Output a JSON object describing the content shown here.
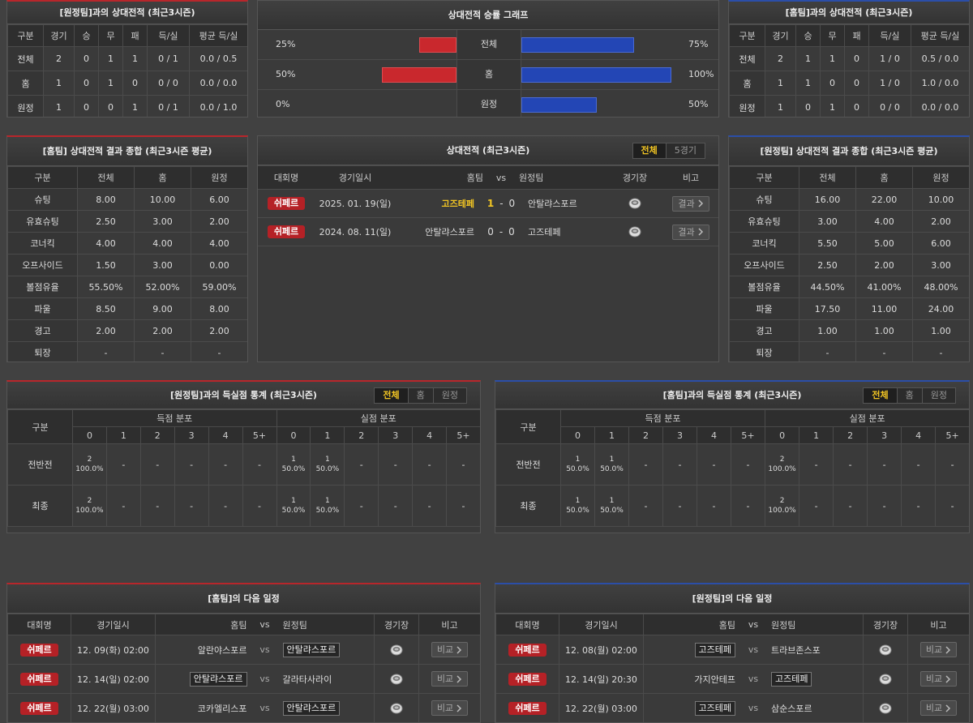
{
  "h2h_vs_away": {
    "title": "[원정팀]과의 상대전적 (최근3시즌)",
    "columns": [
      "구분",
      "경기",
      "승",
      "무",
      "패",
      "득/실",
      "평균 득/실"
    ],
    "rows": [
      [
        "전체",
        "2",
        "0",
        "1",
        "1",
        "0 / 1",
        "0.0 / 0.5"
      ],
      [
        "홈",
        "1",
        "0",
        "1",
        "0",
        "0 / 0",
        "0.0 / 0.0"
      ],
      [
        "원정",
        "1",
        "0",
        "0",
        "1",
        "0 / 1",
        "0.0 / 1.0"
      ]
    ]
  },
  "win_rate_graph": {
    "title": "상대전적 승률 그래프",
    "rows": [
      {
        "label": "전체",
        "left": {
          "value": 25,
          "label": "25%"
        },
        "right": {
          "value": 75,
          "label": "75%"
        }
      },
      {
        "label": "홈",
        "left": {
          "value": 50,
          "label": "50%"
        },
        "right": {
          "value": 100,
          "label": "100%"
        }
      },
      {
        "label": "원정",
        "left": {
          "value": 0,
          "label": "0%"
        },
        "right": {
          "value": 50,
          "label": "50%"
        }
      }
    ]
  },
  "h2h_vs_home": {
    "title": "[홈팀]과의 상대전적 (최근3시즌)",
    "columns": [
      "구분",
      "경기",
      "승",
      "무",
      "패",
      "득/실",
      "평균 득/실"
    ],
    "rows": [
      [
        "전체",
        "2",
        "1",
        "1",
        "0",
        "1 / 0",
        "0.5 / 0.0"
      ],
      [
        "홈",
        "1",
        "1",
        "0",
        "0",
        "1 / 0",
        "1.0 / 0.0"
      ],
      [
        "원정",
        "1",
        "0",
        "1",
        "0",
        "0 / 0",
        "0.0 / 0.0"
      ]
    ]
  },
  "home_summary": {
    "title": "[홈팀] 상대전적 결과 종합 (최근3시즌 평균)",
    "columns": [
      "구분",
      "전체",
      "홈",
      "원정"
    ],
    "rows": [
      [
        "슈팅",
        "8.00",
        "10.00",
        "6.00"
      ],
      [
        "유효슈팅",
        "2.50",
        "3.00",
        "2.00"
      ],
      [
        "코너킥",
        "4.00",
        "4.00",
        "4.00"
      ],
      [
        "오프사이드",
        "1.50",
        "3.00",
        "0.00"
      ],
      [
        "볼점유율",
        "55.50%",
        "52.00%",
        "59.00%"
      ],
      [
        "파울",
        "8.50",
        "9.00",
        "8.00"
      ],
      [
        "경고",
        "2.00",
        "2.00",
        "2.00"
      ],
      [
        "퇴장",
        "-",
        "-",
        "-"
      ]
    ]
  },
  "recent_h2h": {
    "title": "상대전적 (최근3시즌)",
    "tabs": [
      "전체",
      "5경기"
    ],
    "active_tab": 0,
    "columns": [
      "대회명",
      "경기일시",
      "홈팀",
      "vs",
      "원정팀",
      "경기장",
      "비고"
    ],
    "score_separator": "-",
    "matches": [
      {
        "league": "쉬페르",
        "date": "2025. 01. 19(일)",
        "home": "고즈테페",
        "home_score": "1",
        "away_score": "0",
        "away": "안탈랴스포르",
        "note": "결과",
        "winner": "home"
      },
      {
        "league": "쉬페르",
        "date": "2024. 08. 11(일)",
        "home": "안탈랴스포르",
        "home_score": "0",
        "away_score": "0",
        "away": "고즈테페",
        "note": "결과",
        "winner": "draw"
      }
    ]
  },
  "away_summary": {
    "title": "[원정팀] 상대전적 결과 종합 (최근3시즌 평균)",
    "columns": [
      "구분",
      "전체",
      "홈",
      "원정"
    ],
    "rows": [
      [
        "슈팅",
        "16.00",
        "22.00",
        "10.00"
      ],
      [
        "유효슈팅",
        "3.00",
        "4.00",
        "2.00"
      ],
      [
        "코너킥",
        "5.50",
        "5.00",
        "6.00"
      ],
      [
        "오프사이드",
        "2.50",
        "2.00",
        "3.00"
      ],
      [
        "볼점유율",
        "44.50%",
        "41.00%",
        "48.00%"
      ],
      [
        "파울",
        "17.50",
        "11.00",
        "24.00"
      ],
      [
        "경고",
        "1.00",
        "1.00",
        "1.00"
      ],
      [
        "퇴장",
        "-",
        "-",
        "-"
      ]
    ]
  },
  "goal_stats_left": {
    "title": "[원정팀]과의 득실점 통계 (최근3시즌)",
    "tabs": [
      "전체",
      "홈",
      "원정"
    ],
    "active_tab": 0,
    "row_header": "구분",
    "groups": [
      "득점 분포",
      "실점 분포"
    ],
    "buckets": [
      "0",
      "1",
      "2",
      "3",
      "4",
      "5+"
    ],
    "rows": [
      {
        "label": "전반전",
        "cells": [
          [
            "2",
            "100.0%"
          ],
          "-",
          "-",
          "-",
          "-",
          "-",
          [
            "1",
            "50.0%"
          ],
          [
            "1",
            "50.0%"
          ],
          "-",
          "-",
          "-",
          "-"
        ]
      },
      {
        "label": "최종",
        "cells": [
          [
            "2",
            "100.0%"
          ],
          "-",
          "-",
          "-",
          "-",
          "-",
          [
            "1",
            "50.0%"
          ],
          [
            "1",
            "50.0%"
          ],
          "-",
          "-",
          "-",
          "-"
        ]
      }
    ]
  },
  "goal_stats_right": {
    "title": "[홈팀]과의 득실점 통계 (최근3시즌)",
    "tabs": [
      "전체",
      "홈",
      "원정"
    ],
    "active_tab": 0,
    "row_header": "구분",
    "groups": [
      "득점 분포",
      "실점 분포"
    ],
    "buckets": [
      "0",
      "1",
      "2",
      "3",
      "4",
      "5+"
    ],
    "rows": [
      {
        "label": "전반전",
        "cells": [
          [
            "1",
            "50.0%"
          ],
          [
            "1",
            "50.0%"
          ],
          "-",
          "-",
          "-",
          "-",
          [
            "2",
            "100.0%"
          ],
          "-",
          "-",
          "-",
          "-",
          "-"
        ]
      },
      {
        "label": "최종",
        "cells": [
          [
            "1",
            "50.0%"
          ],
          [
            "1",
            "50.0%"
          ],
          "-",
          "-",
          "-",
          "-",
          [
            "2",
            "100.0%"
          ],
          "-",
          "-",
          "-",
          "-",
          "-"
        ]
      }
    ]
  },
  "home_schedule": {
    "title": "[홈팀]의 다음 일정",
    "columns": [
      "대회명",
      "경기일시",
      "홈팀",
      "vs",
      "원정팀",
      "경기장",
      "비고"
    ],
    "separator": "vs",
    "matches": [
      {
        "league": "쉬페르",
        "datetime": "12. 09(화) 02:00",
        "home": "알란야스포르",
        "away": "안탈랴스포르",
        "note": "비교",
        "highlight": "away"
      },
      {
        "league": "쉬페르",
        "datetime": "12. 14(일) 02:00",
        "home": "안탈랴스포르",
        "away": "갈라타사라이",
        "note": "비교",
        "highlight": "home"
      },
      {
        "league": "쉬페르",
        "datetime": "12. 22(월) 03:00",
        "home": "코카엘리스포",
        "away": "안탈랴스포르",
        "note": "비교",
        "highlight": "away"
      }
    ]
  },
  "away_schedule": {
    "title": "[원정팀]의 다음 일정",
    "columns": [
      "대회명",
      "경기일시",
      "홈팀",
      "vs",
      "원정팀",
      "경기장",
      "비고"
    ],
    "separator": "vs",
    "matches": [
      {
        "league": "쉬페르",
        "datetime": "12. 08(월) 02:00",
        "home": "고즈테페",
        "away": "트라브존스포",
        "note": "비교",
        "highlight": "home"
      },
      {
        "league": "쉬페르",
        "datetime": "12. 14(일) 20:30",
        "home": "가지안테프",
        "away": "고즈테페",
        "note": "비교",
        "highlight": "away"
      },
      {
        "league": "쉬페르",
        "datetime": "12. 22(월) 03:00",
        "home": "고즈테페",
        "away": "삼순스포르",
        "note": "비교",
        "highlight": "home"
      }
    ]
  }
}
